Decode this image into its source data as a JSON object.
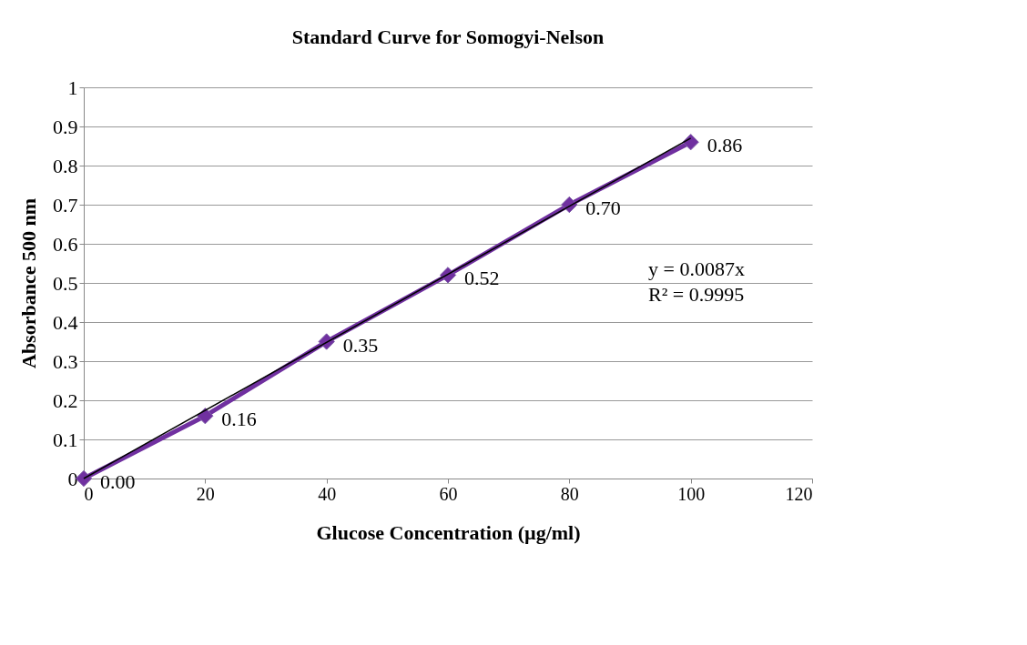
{
  "chart_data": {
    "type": "line",
    "title": "Standard Curve for Somogyi-Nelson",
    "xlabel": "Glucose Concentration  (µg/ml)",
    "ylabel": "Absorbance 500 nm",
    "xlim": [
      0,
      120
    ],
    "xticks": [
      0,
      20,
      40,
      60,
      80,
      100,
      120
    ],
    "ylim": [
      0,
      1
    ],
    "yticks": [
      0,
      0.1,
      0.2,
      0.3,
      0.4,
      0.5,
      0.6,
      0.7,
      0.8,
      0.9,
      1
    ],
    "grid": "y",
    "series": [
      {
        "color": "#7030a0",
        "marker": "diamond",
        "x": [
          0,
          20,
          40,
          60,
          80,
          100
        ],
        "values": [
          0,
          0.16,
          0.35,
          0.52,
          0.7,
          0.86
        ],
        "value_labels": [
          "0.00",
          "0.16",
          "0.35",
          "0.52",
          "0.70",
          "0.86"
        ]
      },
      {
        "color": "#000000",
        "marker": "none",
        "x": [
          0,
          100
        ],
        "values": [
          0,
          0.87
        ]
      }
    ],
    "annotations": [
      "y = 0.0087x",
      "R² = 0.9995"
    ]
  }
}
